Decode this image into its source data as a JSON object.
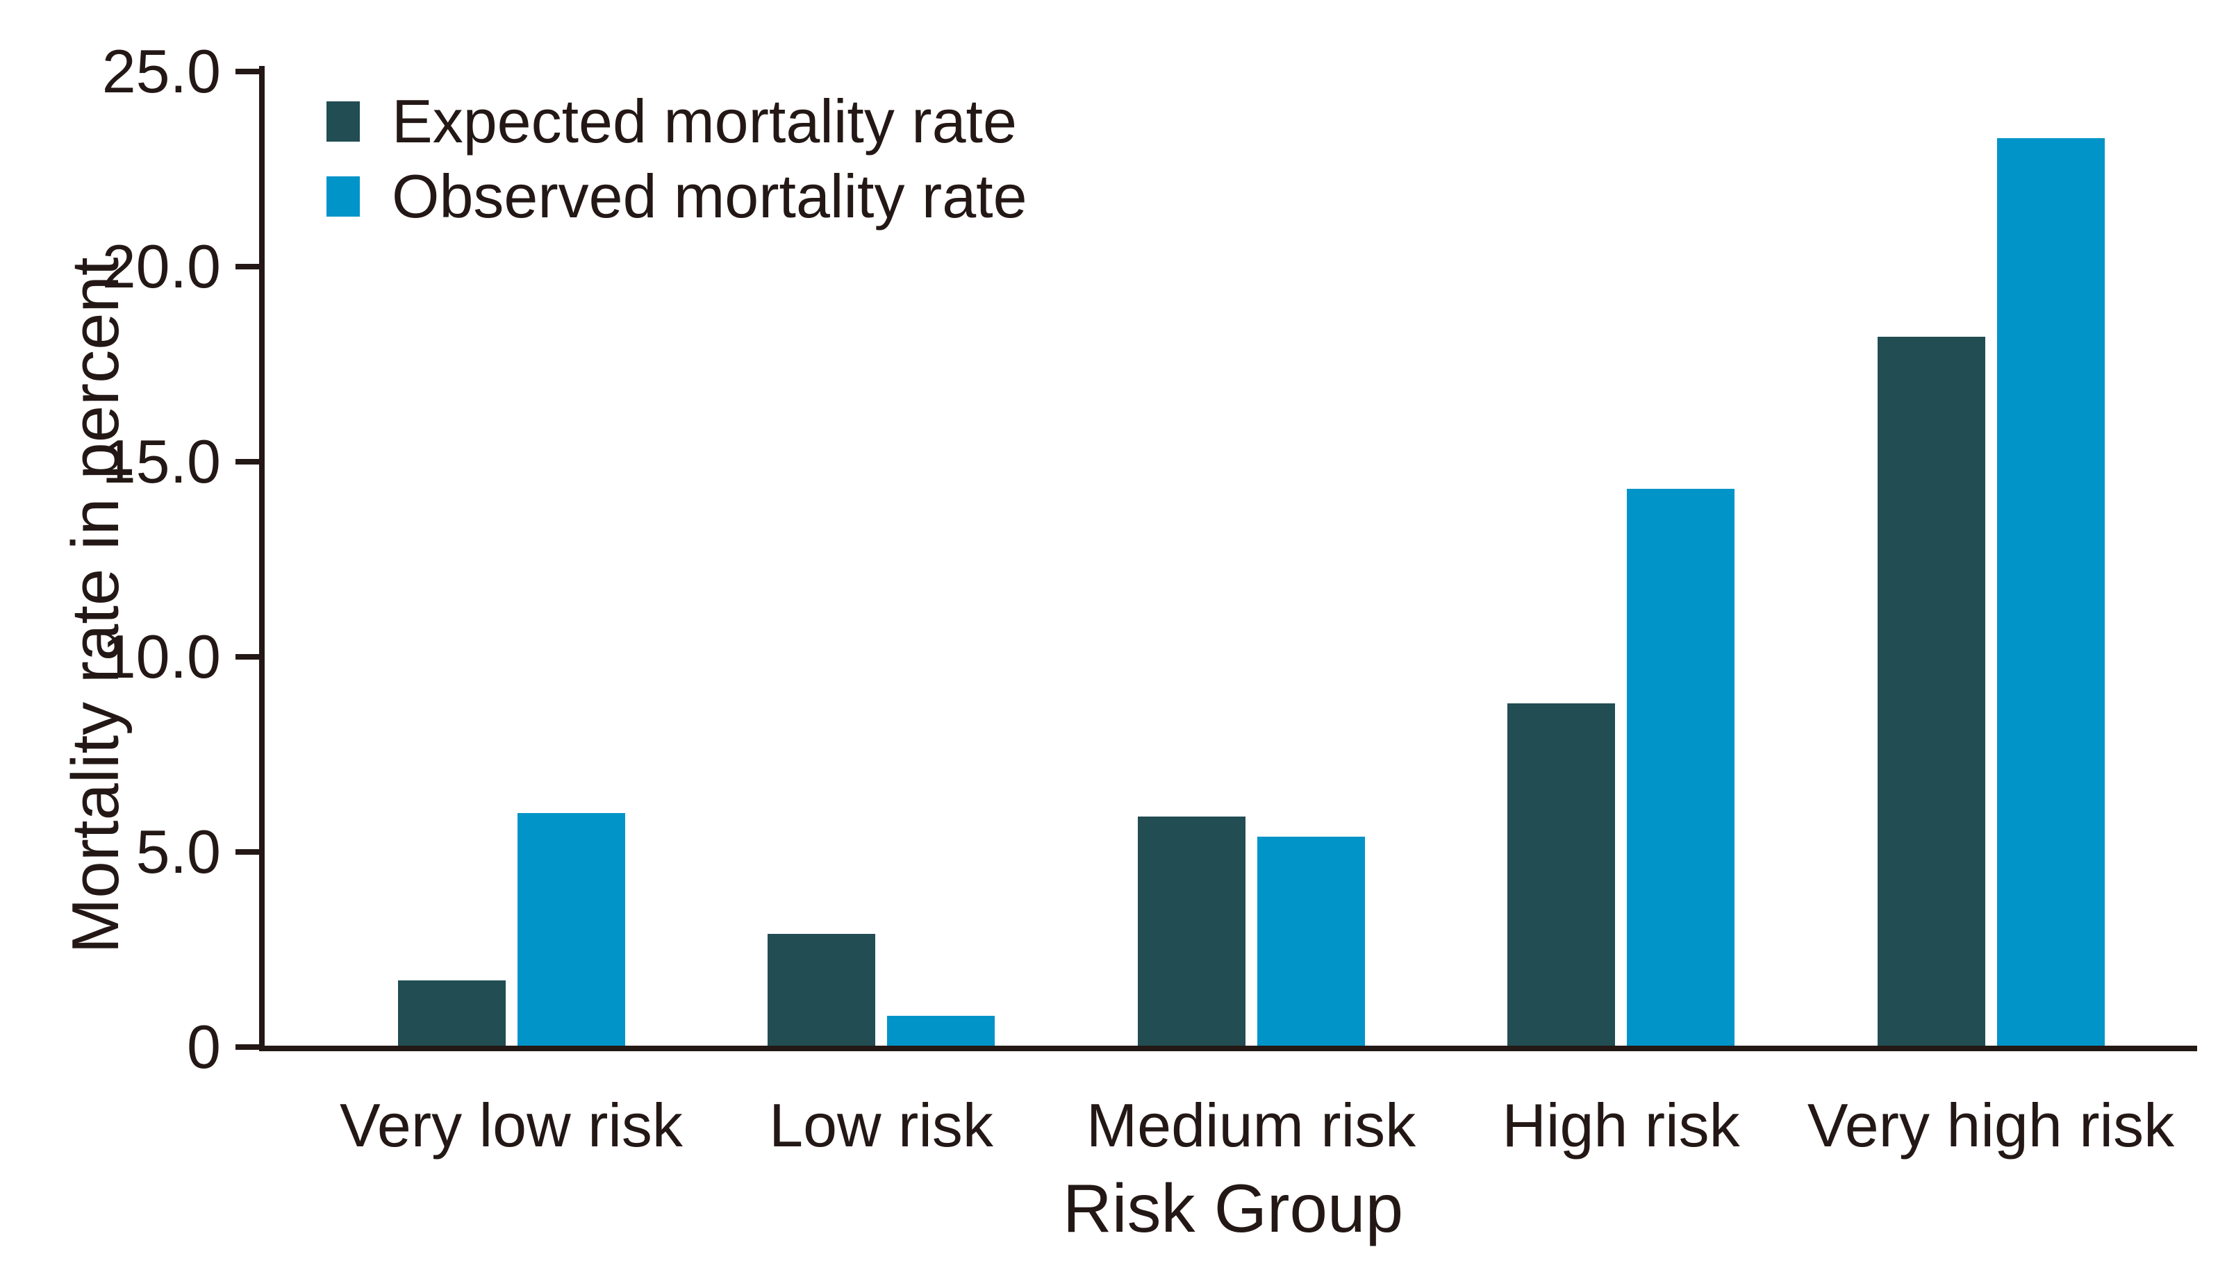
{
  "figure": {
    "background": "#ffffff",
    "text_color": "#231815",
    "axis_color": "#231815"
  },
  "chart_data": {
    "type": "bar",
    "title": "",
    "xlabel": "Risk Group",
    "ylabel": "Mortality rate in percent",
    "categories": [
      "Very low risk",
      "Low risk",
      "Medium risk",
      "High risk",
      "Very high risk"
    ],
    "series": [
      {
        "name": "Expected mortality rate",
        "color": "#214d53",
        "values": [
          1.7,
          2.9,
          5.9,
          8.8,
          18.2
        ]
      },
      {
        "name": "Observed mortality rate",
        "color": "#0094c9",
        "values": [
          6.0,
          0.8,
          5.4,
          14.3,
          23.3
        ]
      }
    ],
    "ylim": [
      0,
      25
    ],
    "yticks": [
      {
        "value": 0,
        "label": "0"
      },
      {
        "value": 5,
        "label": "5.0"
      },
      {
        "value": 10,
        "label": "10.0"
      },
      {
        "value": 15,
        "label": "15.0"
      },
      {
        "value": 20,
        "label": "20.0"
      },
      {
        "value": 25,
        "label": "25.0"
      }
    ],
    "grid": false,
    "legend_position": "top-left"
  }
}
